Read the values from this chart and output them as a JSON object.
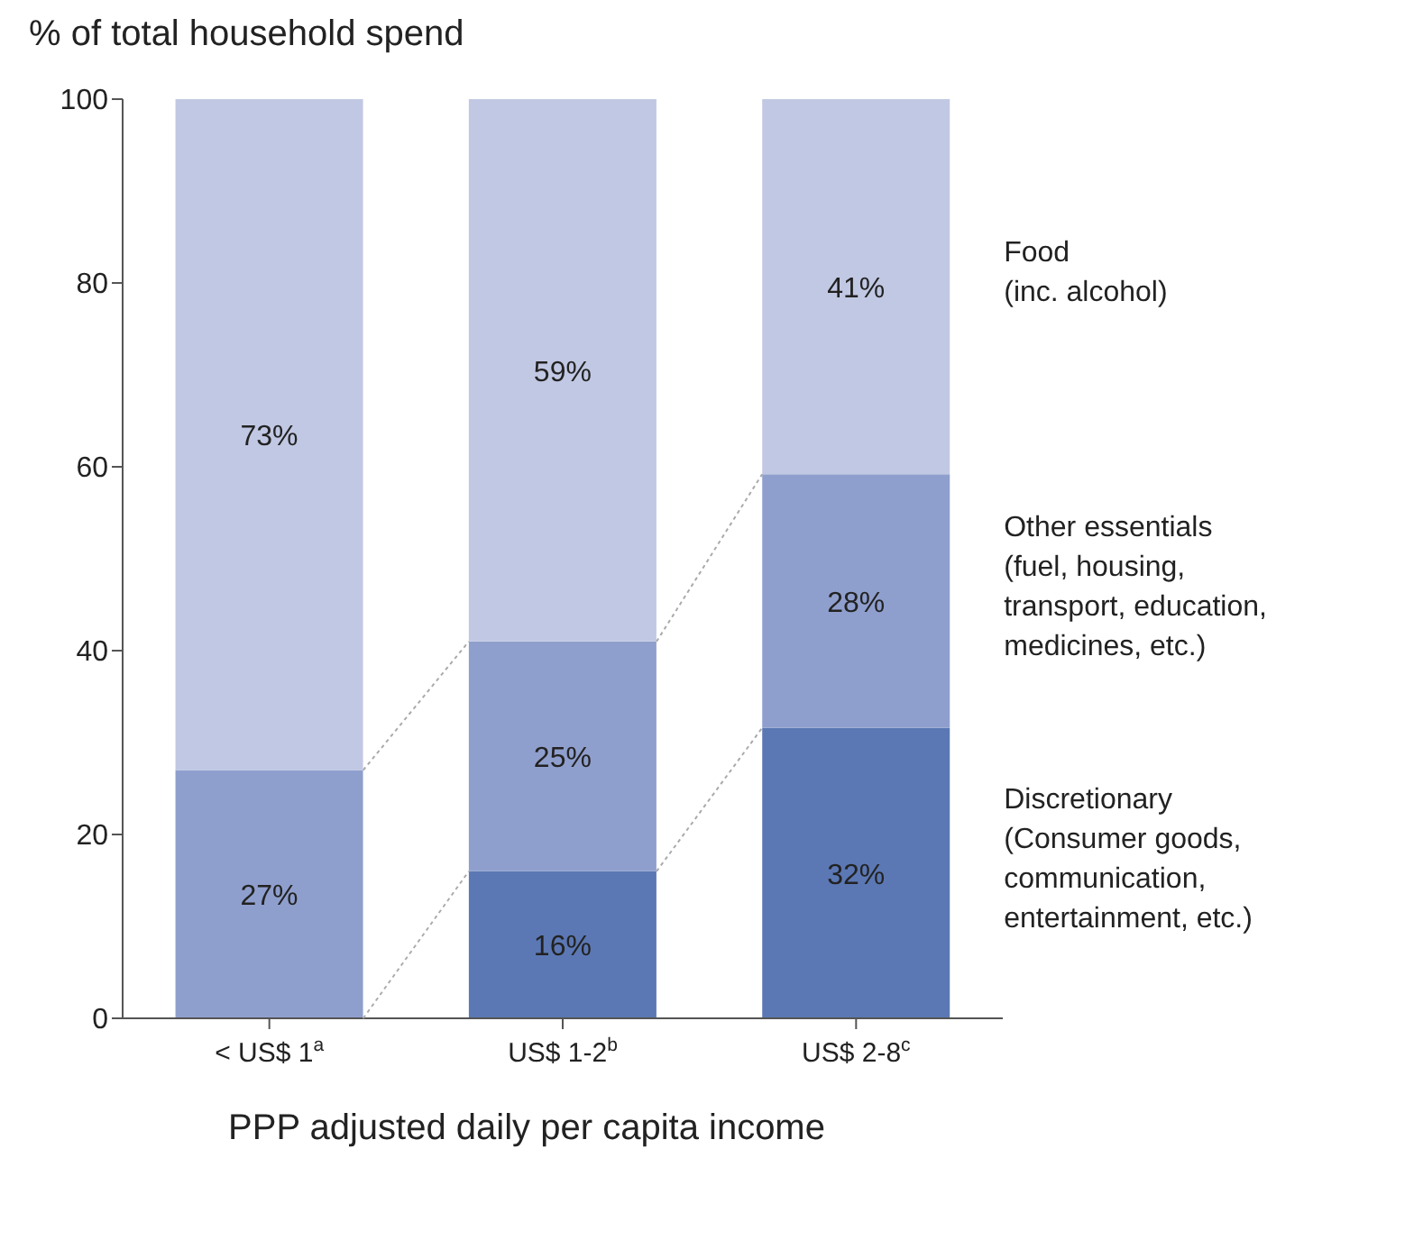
{
  "chart_data": {
    "type": "bar",
    "title": "% of total household spend",
    "xlabel": "PPP adjusted daily per capita income",
    "categories": [
      "< US$ 1$^{a}$",
      "US$ 1-2$^{b}$",
      "US$ 2-8$^{c}$"
    ],
    "stacked": true,
    "series": [
      {
        "name": "Discretionary\n(Consumer goods,\ncommunication,\nentertainment, etc.)",
        "color": "#5b78b4",
        "values": [
          null,
          16,
          31.6
        ],
        "value_labels": [
          null,
          "16%",
          "32%"
        ]
      },
      {
        "name": "Other essentials\n(fuel, housing,\ntransport, education,\nmedicines, etc.)",
        "color": "#8f9fcd",
        "values": [
          27,
          25,
          27.6
        ],
        "value_labels": [
          "27%",
          "25%",
          "28%"
        ]
      },
      {
        "name": "Food\n(inc. alcohol)",
        "color": "#c1c8e3",
        "values": [
          73,
          59,
          40.8
        ],
        "value_labels": [
          "73%",
          "59%",
          "41%"
        ]
      }
    ],
    "ylim": [
      0,
      100
    ],
    "yticks": [
      0,
      20,
      40,
      60,
      80,
      100
    ],
    "grid": false,
    "legend": false
  }
}
